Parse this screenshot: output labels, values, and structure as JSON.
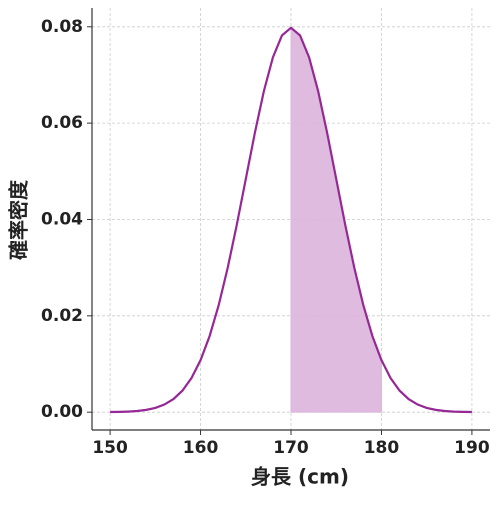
{
  "chart_data": {
    "type": "line",
    "x": [
      150,
      151,
      152,
      153,
      154,
      155,
      156,
      157,
      158,
      159,
      160,
      161,
      162,
      163,
      164,
      165,
      166,
      167,
      168,
      169,
      170,
      171,
      172,
      173,
      174,
      175,
      176,
      177,
      178,
      179,
      180,
      181,
      182,
      183,
      184,
      185,
      186,
      187,
      188,
      189,
      190
    ],
    "values": [
      3e-05,
      6e-05,
      0.00012,
      0.00025,
      0.00048,
      0.00089,
      0.00158,
      0.00272,
      0.00448,
      0.00709,
      0.0108,
      0.01579,
      0.02218,
      0.02995,
      0.03884,
      0.04839,
      0.05794,
      0.06664,
      0.07365,
      0.07821,
      0.07979,
      0.07821,
      0.07365,
      0.06664,
      0.05794,
      0.04839,
      0.03884,
      0.02995,
      0.02218,
      0.01579,
      0.0108,
      0.00709,
      0.00448,
      0.00272,
      0.00158,
      0.00089,
      0.00048,
      0.00025,
      0.00012,
      6e-05,
      3e-05
    ],
    "color": "#962896",
    "shade": {
      "x": [
        170,
        171,
        172,
        173,
        174,
        175,
        176,
        177,
        178,
        179,
        180
      ],
      "values": [
        0.07979,
        0.07821,
        0.07365,
        0.06664,
        0.05794,
        0.04839,
        0.03884,
        0.02995,
        0.02218,
        0.01579,
        0.0108
      ],
      "color": "#dcb4dc"
    },
    "xlabel": "身長 (cm)",
    "ylabel": "確率密度",
    "xlim": [
      148,
      192
    ],
    "xticks": [
      150,
      160,
      170,
      180,
      190
    ],
    "ylim": [
      -0.0037,
      0.0839
    ],
    "yticks": [
      {
        "value": 0,
        "label": "0.00"
      },
      {
        "value": 0.02,
        "label": "0.02"
      },
      {
        "value": 0.04,
        "label": "0.04"
      },
      {
        "value": 0.06,
        "label": "0.06"
      },
      {
        "value": 0.08,
        "label": "0.08"
      }
    ],
    "grid": true
  }
}
